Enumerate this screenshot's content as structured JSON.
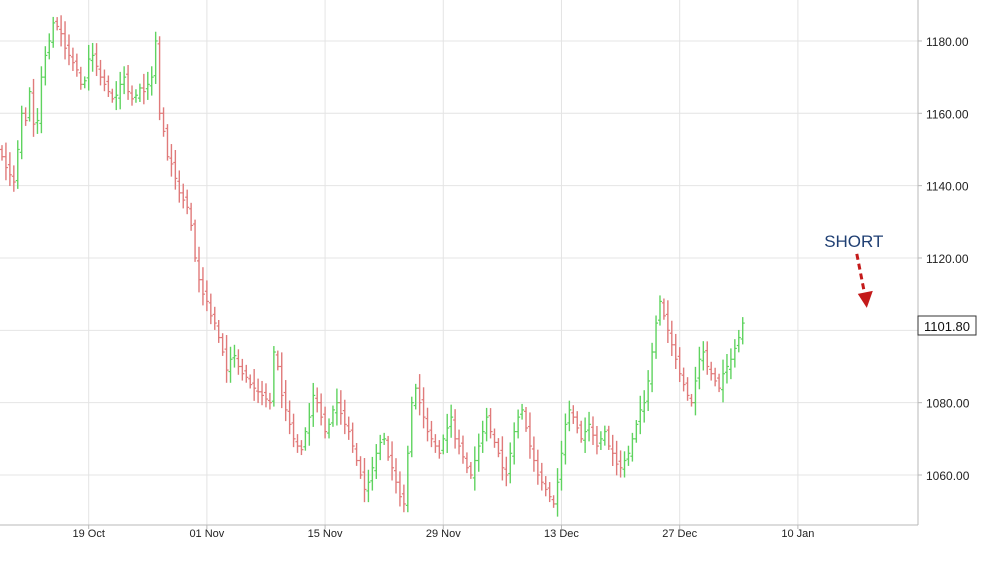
{
  "chart_data": {
    "type": "ohlc",
    "title": "",
    "xlabel": "",
    "ylabel": "",
    "x_ticks": [
      {
        "label": "19 Oct",
        "bar": 22
      },
      {
        "label": "01 Nov",
        "bar": 52
      },
      {
        "label": "15 Nov",
        "bar": 82
      },
      {
        "label": "29 Nov",
        "bar": 112
      },
      {
        "label": "13 Dec",
        "bar": 142
      },
      {
        "label": "27 Dec",
        "bar": 172
      },
      {
        "label": "10 Jan",
        "bar": 202
      }
    ],
    "y_ticks": [
      "1060.00",
      "1080.00",
      "1100.00",
      "1120.00",
      "1140.00",
      "1160.00",
      "1180.00"
    ],
    "ylim": [
      1047,
      1192
    ],
    "grid": true,
    "last_price": "1101.80",
    "annotation": {
      "text": "SHORT",
      "bar": 220,
      "price": 1104
    },
    "colors": {
      "up": "#5fd35f",
      "down": "#e07a7a",
      "grid": "#e4e4e4",
      "axis": "#b9b9b9",
      "annotation_text": "#1f3f73",
      "annotation_arrow": "#c41a1a"
    },
    "closes": [
      1148,
      1145,
      1143,
      1141,
      1150,
      1160,
      1158,
      1166,
      1157,
      1158,
      1170,
      1176,
      1180,
      1185,
      1184,
      1182,
      1178,
      1176,
      1174,
      1172,
      1168,
      1169,
      1175,
      1176,
      1173,
      1170,
      1168,
      1166,
      1164,
      1165,
      1168,
      1170,
      1166,
      1164,
      1165,
      1167,
      1166,
      1168,
      1170,
      1180,
      1160,
      1155,
      1148,
      1146,
      1142,
      1138,
      1136,
      1134,
      1129,
      1120,
      1114,
      1110,
      1108,
      1104,
      1102,
      1098,
      1094,
      1089,
      1092,
      1093,
      1090,
      1088,
      1087,
      1085,
      1084,
      1083,
      1082,
      1081,
      1080,
      1094,
      1090,
      1082,
      1078,
      1074,
      1070,
      1068,
      1067,
      1072,
      1076,
      1082,
      1080,
      1076,
      1072,
      1074,
      1078,
      1080,
      1077,
      1074,
      1072,
      1068,
      1064,
      1060,
      1056,
      1058,
      1062,
      1066,
      1069,
      1070,
      1065,
      1062,
      1058,
      1054,
      1052,
      1066,
      1080,
      1084,
      1080,
      1076,
      1072,
      1070,
      1068,
      1066,
      1070,
      1073,
      1076,
      1070,
      1068,
      1065,
      1062,
      1060,
      1064,
      1068,
      1072,
      1076,
      1072,
      1069,
      1066,
      1062,
      1060,
      1066,
      1072,
      1076,
      1078,
      1073,
      1068,
      1064,
      1060,
      1058,
      1056,
      1054,
      1052,
      1058,
      1066,
      1074,
      1078,
      1076,
      1073,
      1070,
      1072,
      1074,
      1071,
      1068,
      1070,
      1072,
      1068,
      1066,
      1063,
      1062,
      1064,
      1066,
      1070,
      1074,
      1078,
      1080,
      1086,
      1094,
      1102,
      1108,
      1104,
      1100,
      1096,
      1092,
      1088,
      1085,
      1082,
      1080,
      1086,
      1092,
      1094,
      1090,
      1088,
      1086,
      1084,
      1088,
      1090,
      1092,
      1095,
      1098,
      1102
    ]
  }
}
